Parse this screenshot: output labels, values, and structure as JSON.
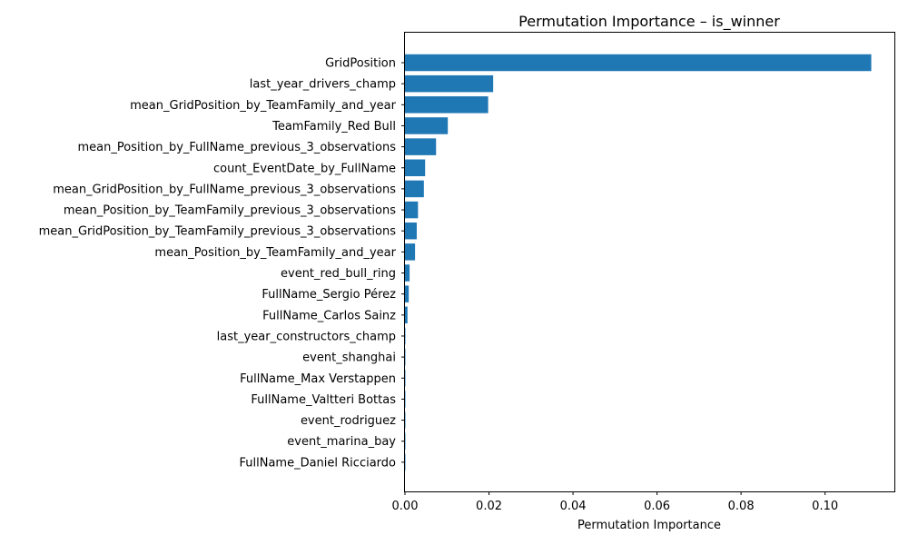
{
  "chart_data": {
    "type": "bar",
    "orientation": "horizontal",
    "title": "Permutation Importance – is_winner",
    "xlabel": "Permutation Importance",
    "ylabel": "",
    "xlim": [
      0,
      0.1165
    ],
    "xticks": [
      0,
      0.02,
      0.04,
      0.06,
      0.08,
      0.1
    ],
    "xtick_labels": [
      "0.00",
      "0.02",
      "0.04",
      "0.06",
      "0.08",
      "0.10"
    ],
    "grid": false,
    "bar_color": "#1f77b4",
    "categories": [
      "GridPosition",
      "last_year_drivers_champ",
      "mean_GridPosition_by_TeamFamily_and_year",
      "TeamFamily_Red Bull",
      "mean_Position_by_FullName_previous_3_observations",
      "count_EventDate_by_FullName",
      "mean_GridPosition_by_FullName_previous_3_observations",
      "mean_Position_by_TeamFamily_previous_3_observations",
      "mean_GridPosition_by_TeamFamily_previous_3_observations",
      "mean_Position_by_TeamFamily_and_year",
      "event_red_bull_ring",
      "FullName_Sergio Pérez",
      "FullName_Carlos Sainz",
      "last_year_constructors_champ",
      "event_shanghai",
      "FullName_Max Verstappen",
      "FullName_Valtteri Bottas",
      "event_rodriguez",
      "event_marina_bay",
      "FullName_Daniel Ricciardo"
    ],
    "values": [
      0.111,
      0.021,
      0.0198,
      0.0102,
      0.0074,
      0.0048,
      0.0045,
      0.0031,
      0.0028,
      0.0024,
      0.0011,
      0.0009,
      0.0006,
      0.0001,
      0.0001,
      0.0001,
      0.0001,
      0.0001,
      0.0001,
      0.0001
    ]
  }
}
